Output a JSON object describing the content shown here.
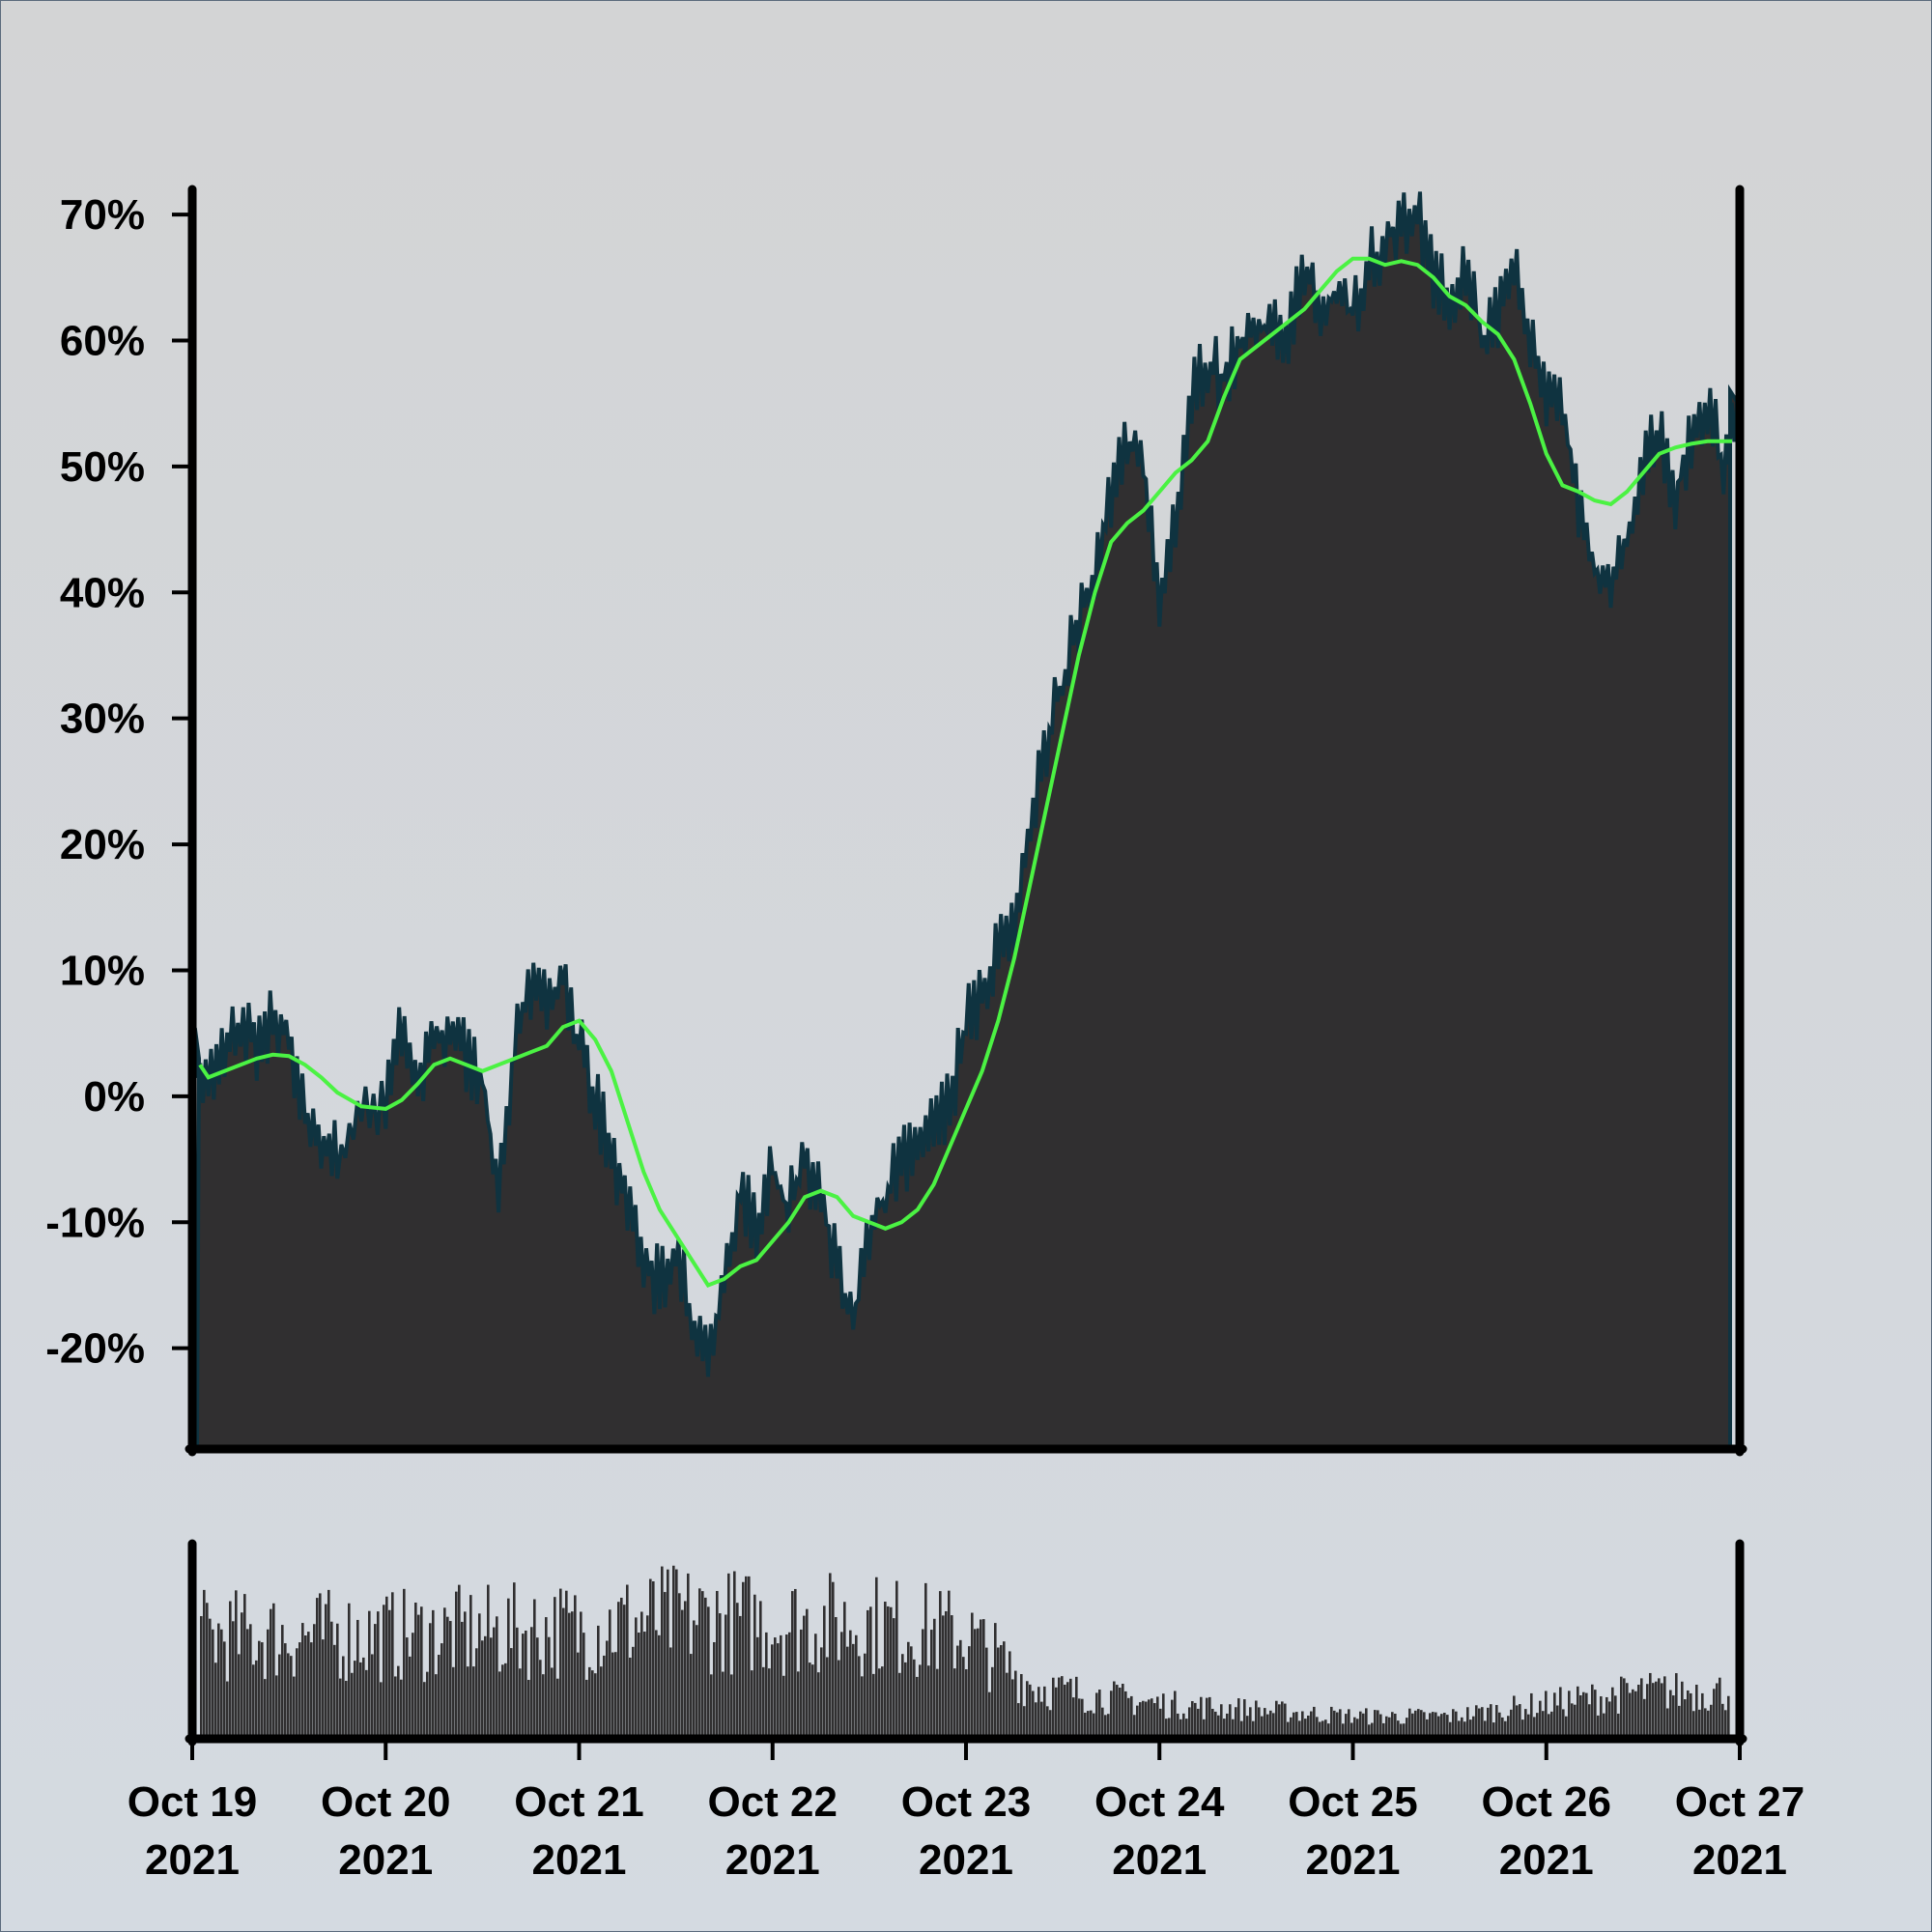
{
  "chart_data": {
    "type": "area",
    "title": "",
    "xlabel": "",
    "ylabel": "",
    "x_range": [
      "2021-10-19",
      "2021-10-27"
    ],
    "y_range_percent": [
      -28,
      72
    ],
    "y_ticks": [
      {
        "value": 70,
        "label": "70%"
      },
      {
        "value": 60,
        "label": "60%"
      },
      {
        "value": 50,
        "label": "50%"
      },
      {
        "value": 40,
        "label": "40%"
      },
      {
        "value": 30,
        "label": "30%"
      },
      {
        "value": 20,
        "label": "20%"
      },
      {
        "value": 10,
        "label": "10%"
      },
      {
        "value": 0,
        "label": "0%"
      },
      {
        "value": -10,
        "label": "-10%"
      },
      {
        "value": -20,
        "label": "-20%"
      }
    ],
    "x_ticks": [
      {
        "date": "2021-10-19",
        "line1": "Oct 19",
        "line2": "2021"
      },
      {
        "date": "2021-10-20",
        "line1": "Oct 20",
        "line2": "2021"
      },
      {
        "date": "2021-10-21",
        "line1": "Oct 21",
        "line2": "2021"
      },
      {
        "date": "2021-10-22",
        "line1": "Oct 22",
        "line2": "2021"
      },
      {
        "date": "2021-10-23",
        "line1": "Oct 23",
        "line2": "2021"
      },
      {
        "date": "2021-10-24",
        "line1": "Oct 24",
        "line2": "2021"
      },
      {
        "date": "2021-10-25",
        "line1": "Oct 25",
        "line2": "2021"
      },
      {
        "date": "2021-10-26",
        "line1": "Oct 26",
        "line2": "2021"
      },
      {
        "date": "2021-10-27",
        "line1": "Oct 27",
        "line2": "2021"
      }
    ],
    "series": [
      {
        "role": "cumulative return (area)",
        "color": "#302f30",
        "edge_color": "#0f3340",
        "points": [
          [
            "2021-10-19 00:00",
            3
          ],
          [
            "2021-10-19 02:00",
            1
          ],
          [
            "2021-10-19 04:00",
            4
          ],
          [
            "2021-10-19 06:00",
            6
          ],
          [
            "2021-10-19 08:00",
            4
          ],
          [
            "2021-10-19 10:00",
            6
          ],
          [
            "2021-10-19 12:00",
            5
          ],
          [
            "2021-10-19 14:00",
            -2
          ],
          [
            "2021-10-19 16:00",
            -3
          ],
          [
            "2021-10-19 18:00",
            -5
          ],
          [
            "2021-10-19 21:00",
            -1
          ],
          [
            "2021-10-20 00:00",
            0
          ],
          [
            "2021-10-20 02:00",
            6
          ],
          [
            "2021-10-20 04:00",
            1
          ],
          [
            "2021-10-20 06:00",
            4
          ],
          [
            "2021-10-20 08:00",
            6
          ],
          [
            "2021-10-20 10:00",
            3
          ],
          [
            "2021-10-20 12:00",
            1
          ],
          [
            "2021-10-20 14:00",
            -7
          ],
          [
            "2021-10-20 16:00",
            4
          ],
          [
            "2021-10-20 18:00",
            8
          ],
          [
            "2021-10-20 20:00",
            7
          ],
          [
            "2021-10-20 22:00",
            9
          ],
          [
            "2021-10-21 00:00",
            4
          ],
          [
            "2021-10-21 02:00",
            0
          ],
          [
            "2021-10-21 04:00",
            -5
          ],
          [
            "2021-10-21 06:00",
            -8
          ],
          [
            "2021-10-21 08:00",
            -13
          ],
          [
            "2021-10-21 10:00",
            -15
          ],
          [
            "2021-10-21 12:00",
            -12
          ],
          [
            "2021-10-21 14:00",
            -18
          ],
          [
            "2021-10-21 16:00",
            -20
          ],
          [
            "2021-10-21 18:00",
            -15
          ],
          [
            "2021-10-21 20:00",
            -8
          ],
          [
            "2021-10-21 22:00",
            -10
          ],
          [
            "2021-10-22 00:00",
            -6
          ],
          [
            "2021-10-22 02:00",
            -9
          ],
          [
            "2021-10-22 04:00",
            -5
          ],
          [
            "2021-10-22 06:00",
            -8
          ],
          [
            "2021-10-22 08:00",
            -14
          ],
          [
            "2021-10-22 10:00",
            -18
          ],
          [
            "2021-10-22 12:00",
            -10
          ],
          [
            "2021-10-22 14:00",
            -8
          ],
          [
            "2021-10-22 16:00",
            -5
          ],
          [
            "2021-10-22 18:00",
            -4
          ],
          [
            "2021-10-22 20:00",
            -2
          ],
          [
            "2021-10-22 22:00",
            -1
          ],
          [
            "2021-10-23 00:00",
            6
          ],
          [
            "2021-10-23 02:00",
            8
          ],
          [
            "2021-10-23 04:00",
            12
          ],
          [
            "2021-10-23 06:00",
            14
          ],
          [
            "2021-10-23 08:00",
            22
          ],
          [
            "2021-10-23 10:00",
            28
          ],
          [
            "2021-10-23 12:00",
            33
          ],
          [
            "2021-10-23 14:00",
            38
          ],
          [
            "2021-10-23 16:00",
            42
          ],
          [
            "2021-10-23 18:00",
            48
          ],
          [
            "2021-10-23 20:00",
            52
          ],
          [
            "2021-10-23 22:00",
            50
          ],
          [
            "2021-10-24 00:00",
            40
          ],
          [
            "2021-10-24 02:00",
            46
          ],
          [
            "2021-10-24 04:00",
            56
          ],
          [
            "2021-10-24 06:00",
            58
          ],
          [
            "2021-10-24 08:00",
            57
          ],
          [
            "2021-10-24 10:00",
            60
          ],
          [
            "2021-10-24 12:00",
            61
          ],
          [
            "2021-10-24 14:00",
            61
          ],
          [
            "2021-10-24 16:00",
            60
          ],
          [
            "2021-10-24 18:00",
            66
          ],
          [
            "2021-10-24 20:00",
            62
          ],
          [
            "2021-10-24 22:00",
            64
          ],
          [
            "2021-10-25 00:00",
            62
          ],
          [
            "2021-10-25 02:00",
            66
          ],
          [
            "2021-10-25 04:00",
            68
          ],
          [
            "2021-10-25 06:00",
            69
          ],
          [
            "2021-10-25 08:00",
            70
          ],
          [
            "2021-10-25 10:00",
            65
          ],
          [
            "2021-10-25 12:00",
            63
          ],
          [
            "2021-10-25 14:00",
            66
          ],
          [
            "2021-10-25 16:00",
            60
          ],
          [
            "2021-10-25 18:00",
            62
          ],
          [
            "2021-10-25 20:00",
            66
          ],
          [
            "2021-10-25 22:00",
            60
          ],
          [
            "2021-10-26 00:00",
            56
          ],
          [
            "2021-10-26 02:00",
            55
          ],
          [
            "2021-10-26 04:00",
            47
          ],
          [
            "2021-10-26 06:00",
            42
          ],
          [
            "2021-10-26 08:00",
            40
          ],
          [
            "2021-10-26 10:00",
            44
          ],
          [
            "2021-10-26 12:00",
            50
          ],
          [
            "2021-10-26 14:00",
            53
          ],
          [
            "2021-10-26 16:00",
            48
          ],
          [
            "2021-10-26 18:00",
            52
          ],
          [
            "2021-10-26 20:00",
            55
          ],
          [
            "2021-10-26 22:00",
            50
          ],
          [
            "2021-10-27 00:00",
            56
          ]
        ]
      },
      {
        "role": "smoothed moving average (line)",
        "color": "#4bf243",
        "points": [
          [
            "2021-10-19 00:00",
            2.5
          ],
          [
            "2021-10-19 02:00",
            1.5
          ],
          [
            "2021-10-19 04:00",
            2
          ],
          [
            "2021-10-19 06:00",
            2.5
          ],
          [
            "2021-10-19 08:00",
            3
          ],
          [
            "2021-10-19 10:00",
            3.3
          ],
          [
            "2021-10-19 12:00",
            3.2
          ],
          [
            "2021-10-19 14:00",
            2.5
          ],
          [
            "2021-10-19 16:00",
            1.5
          ],
          [
            "2021-10-19 18:00",
            0.3
          ],
          [
            "2021-10-19 21:00",
            -0.8
          ],
          [
            "2021-10-20 00:00",
            -1
          ],
          [
            "2021-10-20 02:00",
            -0.3
          ],
          [
            "2021-10-20 04:00",
            1
          ],
          [
            "2021-10-20 06:00",
            2.5
          ],
          [
            "2021-10-20 08:00",
            3
          ],
          [
            "2021-10-20 10:00",
            2.5
          ],
          [
            "2021-10-20 12:00",
            2
          ],
          [
            "2021-10-20 14:00",
            2.5
          ],
          [
            "2021-10-20 16:00",
            3
          ],
          [
            "2021-10-20 18:00",
            3.5
          ],
          [
            "2021-10-20 20:00",
            4
          ],
          [
            "2021-10-20 22:00",
            5.5
          ],
          [
            "2021-10-21 00:00",
            6
          ],
          [
            "2021-10-21 02:00",
            4.5
          ],
          [
            "2021-10-21 04:00",
            2
          ],
          [
            "2021-10-21 06:00",
            -2
          ],
          [
            "2021-10-21 08:00",
            -6
          ],
          [
            "2021-10-21 10:00",
            -9
          ],
          [
            "2021-10-21 12:00",
            -11
          ],
          [
            "2021-10-21 14:00",
            -13
          ],
          [
            "2021-10-21 16:00",
            -15
          ],
          [
            "2021-10-21 18:00",
            -14.5
          ],
          [
            "2021-10-21 20:00",
            -13.5
          ],
          [
            "2021-10-21 22:00",
            -13
          ],
          [
            "2021-10-22 00:00",
            -11.5
          ],
          [
            "2021-10-22 02:00",
            -10
          ],
          [
            "2021-10-22 04:00",
            -8
          ],
          [
            "2021-10-22 06:00",
            -7.5
          ],
          [
            "2021-10-22 08:00",
            -8
          ],
          [
            "2021-10-22 10:00",
            -9.5
          ],
          [
            "2021-10-22 12:00",
            -10
          ],
          [
            "2021-10-22 14:00",
            -10.5
          ],
          [
            "2021-10-22 16:00",
            -10
          ],
          [
            "2021-10-22 18:00",
            -9
          ],
          [
            "2021-10-22 20:00",
            -7
          ],
          [
            "2021-10-22 22:00",
            -4
          ],
          [
            "2021-10-23 00:00",
            -1
          ],
          [
            "2021-10-23 02:00",
            2
          ],
          [
            "2021-10-23 04:00",
            6
          ],
          [
            "2021-10-23 06:00",
            11
          ],
          [
            "2021-10-23 08:00",
            17
          ],
          [
            "2021-10-23 10:00",
            23
          ],
          [
            "2021-10-23 12:00",
            29
          ],
          [
            "2021-10-23 14:00",
            35
          ],
          [
            "2021-10-23 16:00",
            40
          ],
          [
            "2021-10-23 18:00",
            44
          ],
          [
            "2021-10-23 20:00",
            45.5
          ],
          [
            "2021-10-23 22:00",
            46.5
          ],
          [
            "2021-10-24 00:00",
            48
          ],
          [
            "2021-10-24 02:00",
            49.5
          ],
          [
            "2021-10-24 04:00",
            50.5
          ],
          [
            "2021-10-24 06:00",
            52
          ],
          [
            "2021-10-24 08:00",
            55.5
          ],
          [
            "2021-10-24 10:00",
            58.5
          ],
          [
            "2021-10-24 12:00",
            59.5
          ],
          [
            "2021-10-24 14:00",
            60.5
          ],
          [
            "2021-10-24 16:00",
            61.5
          ],
          [
            "2021-10-24 18:00",
            62.5
          ],
          [
            "2021-10-24 20:00",
            64
          ],
          [
            "2021-10-24 22:00",
            65.5
          ],
          [
            "2021-10-25 00:00",
            66.5
          ],
          [
            "2021-10-25 02:00",
            66.5
          ],
          [
            "2021-10-25 04:00",
            66
          ],
          [
            "2021-10-25 06:00",
            66.3
          ],
          [
            "2021-10-25 08:00",
            66
          ],
          [
            "2021-10-25 10:00",
            65
          ],
          [
            "2021-10-25 12:00",
            63.5
          ],
          [
            "2021-10-25 14:00",
            62.8
          ],
          [
            "2021-10-25 16:00",
            61.5
          ],
          [
            "2021-10-25 18:00",
            60.5
          ],
          [
            "2021-10-25 20:00",
            58.5
          ],
          [
            "2021-10-25 22:00",
            55
          ],
          [
            "2021-10-26 00:00",
            51
          ],
          [
            "2021-10-26 02:00",
            48.5
          ],
          [
            "2021-10-26 04:00",
            48
          ],
          [
            "2021-10-26 06:00",
            47.3
          ],
          [
            "2021-10-26 08:00",
            47
          ],
          [
            "2021-10-26 10:00",
            48
          ],
          [
            "2021-10-26 12:00",
            49.5
          ],
          [
            "2021-10-26 14:00",
            51
          ],
          [
            "2021-10-26 16:00",
            51.5
          ],
          [
            "2021-10-26 18:00",
            51.8
          ],
          [
            "2021-10-26 20:00",
            52
          ],
          [
            "2021-10-26 22:00",
            52
          ],
          [
            "2021-10-27 00:00",
            52
          ]
        ]
      }
    ],
    "volume_panel": {
      "type": "bar",
      "color": "#302f30",
      "note_units": "relative (no axis labels shown)",
      "levels_by_segment": [
        [
          "2021-10-19",
          0.8
        ],
        [
          "2021-10-20",
          0.8
        ],
        [
          "2021-10-21",
          0.85
        ],
        [
          "2021-10-21 12:00",
          0.95
        ],
        [
          "2021-10-22",
          0.9
        ],
        [
          "2021-10-22 12:00",
          0.9
        ],
        [
          "2021-10-23",
          0.8
        ],
        [
          "2021-10-23 08:00",
          0.4
        ],
        [
          "2021-10-23 12:00",
          0.35
        ],
        [
          "2021-10-24",
          0.25
        ],
        [
          "2021-10-24 12:00",
          0.2
        ],
        [
          "2021-10-25",
          0.15
        ],
        [
          "2021-10-25 12:00",
          0.15
        ],
        [
          "2021-10-26",
          0.25
        ],
        [
          "2021-10-26 12:00",
          0.35
        ],
        [
          "2021-10-27",
          0.35
        ]
      ]
    }
  }
}
